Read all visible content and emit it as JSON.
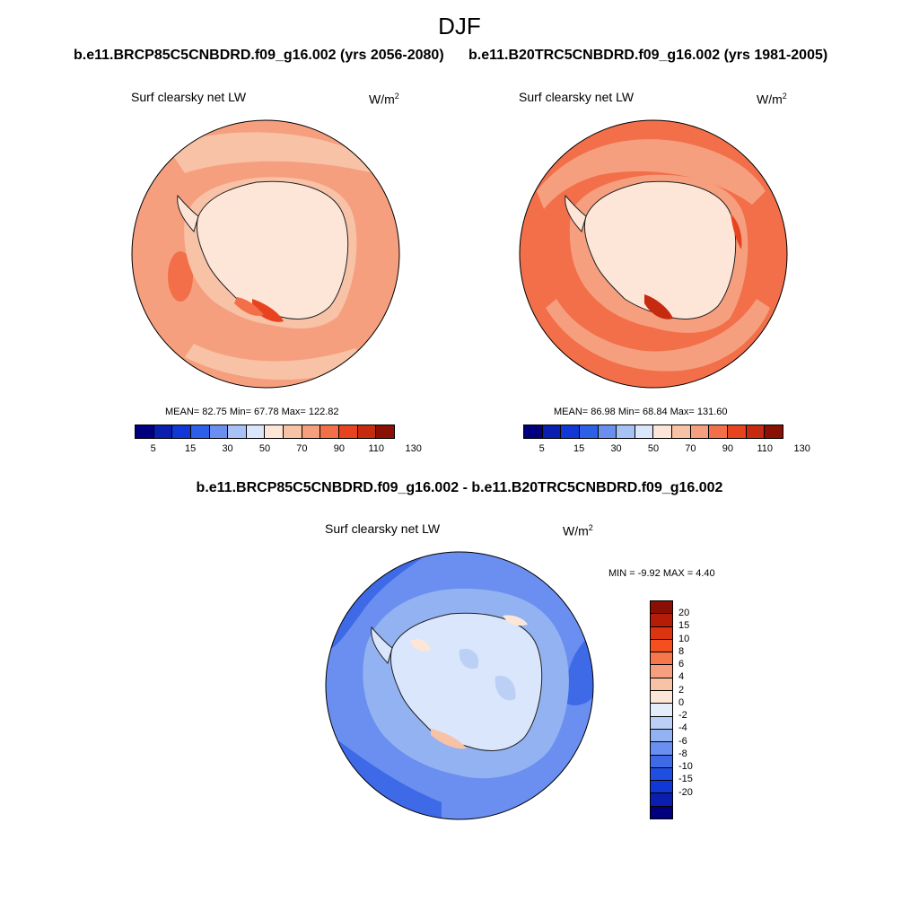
{
  "header": {
    "season": "DJF",
    "left_run_title": "b.e11.BRCP85C5CNBDRD.f09_g16.002 (yrs 2056-2080)",
    "right_run_title": "b.e11.B20TRC5CNBDRD.f09_g16.002 (yrs 1981-2005)",
    "diff_title": "b.e11.BRCP85C5CNBDRD.f09_g16.002 - b.e11.B20TRC5CNBDRD.f09_g16.002"
  },
  "panels": {
    "left": {
      "var_label": "Surf clearsky net LW",
      "units": "W/m",
      "units_exp": "2",
      "stats": "MEAN=  82.75  Min=  67.78  Max= 122.82"
    },
    "right": {
      "var_label": "Surf clearsky net LW",
      "units": "W/m",
      "units_exp": "2",
      "stats": "MEAN=  86.98  Min=  68.84  Max= 131.60"
    },
    "diff": {
      "var_label": "Surf clearsky net LW",
      "units": "W/m",
      "units_exp": "2",
      "stats": "MIN =  -9.92 MAX =   4.40"
    }
  },
  "colorbar_main": {
    "labels": [
      "5",
      "15",
      "30",
      "50",
      "70",
      "90",
      "110",
      "130"
    ],
    "colors": [
      "#00007f",
      "#0a1fb0",
      "#1138d6",
      "#2d5fe8",
      "#6a8ff0",
      "#a8c2f5",
      "#d9e6fb",
      "#fde6d8",
      "#f8c2a6",
      "#f69f7f",
      "#f26f4a",
      "#e8431f",
      "#c62b10",
      "#8a0f05"
    ]
  },
  "colorbar_diff": {
    "labels": [
      "20",
      "15",
      "10",
      "8",
      "6",
      "4",
      "2",
      "0",
      "-2",
      "-4",
      "-6",
      "-8",
      "-10",
      "-15",
      "-20"
    ],
    "colors": [
      "#8a0f05",
      "#b51d09",
      "#dc3410",
      "#f4501f",
      "#f6774a",
      "#f69f7f",
      "#f8c2a6",
      "#fde6d8",
      "#e4eefb",
      "#bcd0f6",
      "#93b2f1",
      "#6a8ff0",
      "#3e6ae8",
      "#1f4fe0",
      "#1138d6",
      "#0a1fb0",
      "#00007f"
    ]
  },
  "map_colors": {
    "left_ocean": "#f69f7f",
    "left_ice": "#fde6d8",
    "left_mid": "#f8c2a6",
    "left_hot": "#f26f4a",
    "left_hotter": "#e8431f",
    "right_ocean": "#f26f4a",
    "right_band": "#f69f7f",
    "right_ice": "#fde6d8",
    "right_hot": "#e8431f",
    "right_hotter": "#c62b10",
    "diff_ocean": "#6a8ff0",
    "diff_ring": "#93b2f1",
    "diff_deep": "#3e6ae8",
    "diff_ice": "#d9e6fb",
    "diff_icepatch": "#bcd0f6",
    "diff_pos": "#fde6d8",
    "diff_pos2": "#f8c2a6"
  }
}
